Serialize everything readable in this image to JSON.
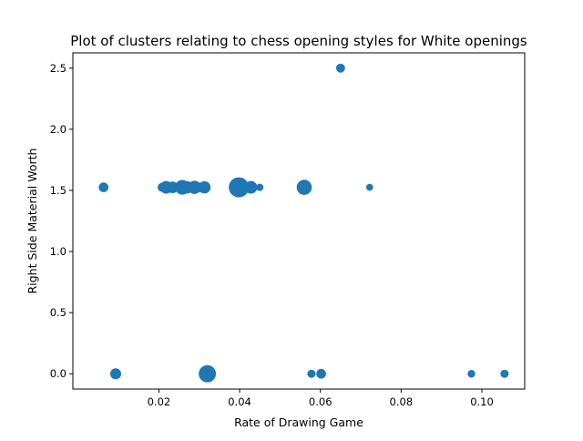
{
  "chart_data": {
    "type": "scatter",
    "title": "Plot of clusters relating to chess opening styles for White openings",
    "xlabel": "Rate of Drawing Game",
    "ylabel": "Right Side Material Worth",
    "xlim": [
      -0.0013,
      0.1106
    ],
    "ylim": [
      -0.125,
      2.625
    ],
    "xticks": [
      0.02,
      0.04,
      0.06,
      0.08,
      0.1
    ],
    "xtick_labels": [
      "0.02",
      "0.04",
      "0.06",
      "0.08",
      "0.10"
    ],
    "yticks": [
      0.0,
      0.5,
      1.0,
      1.5,
      2.0,
      2.5
    ],
    "ytick_labels": [
      "0.0",
      "0.5",
      "1.0",
      "1.5",
      "2.0",
      "2.5"
    ],
    "grid": false,
    "legend": "none",
    "marker_color": "#1f77b4",
    "points": [
      {
        "x": 0.0063,
        "y": 1.525,
        "size": 35
      },
      {
        "x": 0.0093,
        "y": 0.0,
        "size": 45
      },
      {
        "x": 0.0208,
        "y": 1.525,
        "size": 30
      },
      {
        "x": 0.0218,
        "y": 1.525,
        "size": 60
      },
      {
        "x": 0.0234,
        "y": 1.525,
        "size": 50
      },
      {
        "x": 0.0258,
        "y": 1.525,
        "size": 80
      },
      {
        "x": 0.027,
        "y": 1.525,
        "size": 55
      },
      {
        "x": 0.0288,
        "y": 1.525,
        "size": 65
      },
      {
        "x": 0.03,
        "y": 1.525,
        "size": 35
      },
      {
        "x": 0.0313,
        "y": 1.525,
        "size": 55
      },
      {
        "x": 0.032,
        "y": 0.0,
        "size": 110
      },
      {
        "x": 0.0398,
        "y": 1.525,
        "size": 150
      },
      {
        "x": 0.0428,
        "y": 1.525,
        "size": 60
      },
      {
        "x": 0.045,
        "y": 1.525,
        "size": 20
      },
      {
        "x": 0.056,
        "y": 1.525,
        "size": 85
      },
      {
        "x": 0.0578,
        "y": 0.0,
        "size": 25
      },
      {
        "x": 0.0602,
        "y": 0.0,
        "size": 35
      },
      {
        "x": 0.065,
        "y": 2.5,
        "size": 30
      },
      {
        "x": 0.0722,
        "y": 1.525,
        "size": 18
      },
      {
        "x": 0.0974,
        "y": 0.0,
        "size": 22
      },
      {
        "x": 0.1056,
        "y": 0.0,
        "size": 25
      }
    ]
  }
}
